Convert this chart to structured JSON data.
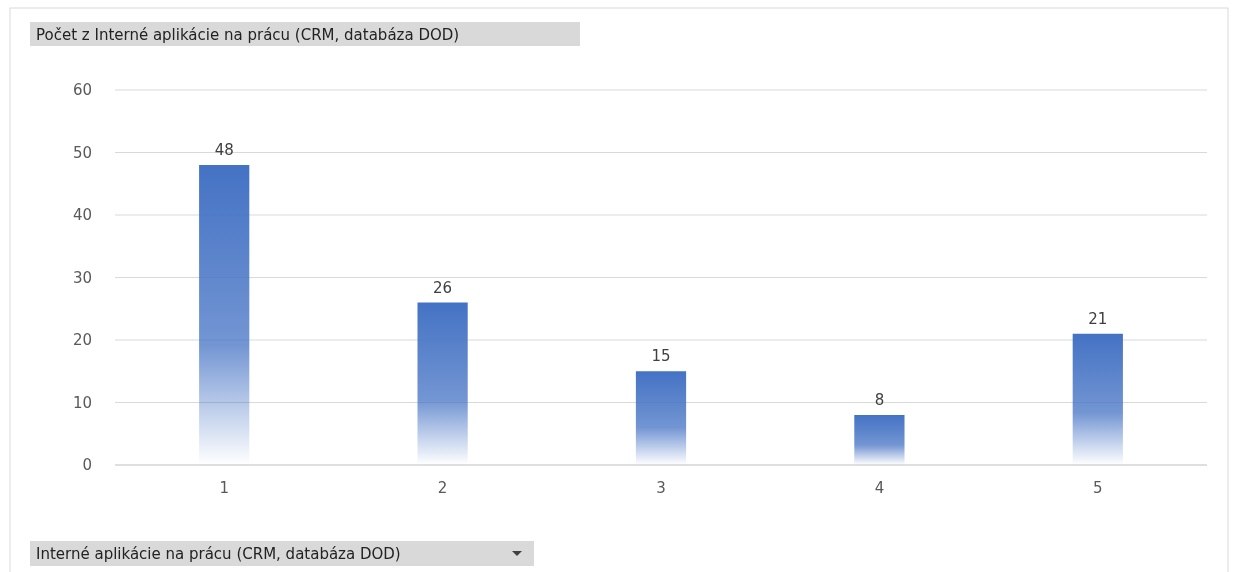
{
  "chart_data": {
    "type": "bar",
    "title": "Počet z Interné aplikácie na prácu (CRM, databáza DOD)",
    "xlabel": "Interné aplikácie na prácu (CRM, databáza DOD)",
    "categories": [
      "1",
      "2",
      "3",
      "4",
      "5"
    ],
    "values": [
      48,
      26,
      15,
      8,
      21
    ],
    "color": "#4472c4",
    "ylim": [
      0,
      60
    ],
    "yticks": [
      0,
      10,
      20,
      30,
      40,
      50,
      60
    ],
    "grid": "y",
    "data_labels": true
  }
}
